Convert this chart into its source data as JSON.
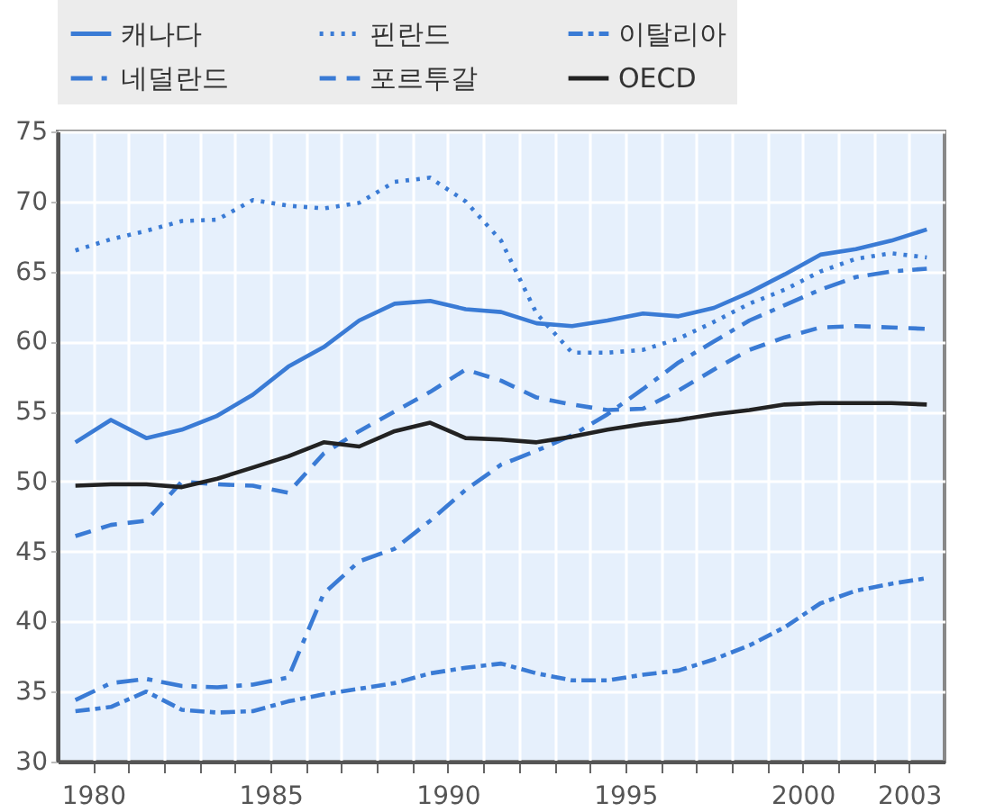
{
  "chart_data": {
    "type": "line",
    "x": [
      1979.5,
      1980.5,
      1981.5,
      1982.5,
      1983.5,
      1984.5,
      1985.5,
      1986.5,
      1987.5,
      1988.5,
      1989.5,
      1990.5,
      1991.5,
      1992.5,
      1993.5,
      1994.5,
      1995.5,
      1996.5,
      1997.5,
      1998.5,
      1999.5,
      2000.5,
      2001.5,
      2002.5,
      2003.5
    ],
    "series": [
      {
        "name": "캐나다",
        "color": "#3a7bd5",
        "line_style": "solid",
        "values": [
          52.8,
          54.4,
          53.1,
          53.7,
          54.7,
          56.2,
          58.2,
          59.6,
          61.5,
          62.7,
          62.9,
          62.3,
          62.1,
          61.3,
          61.1,
          61.5,
          62.0,
          61.8,
          62.4,
          63.5,
          64.8,
          66.2,
          66.6,
          67.2,
          68.0
        ]
      },
      {
        "name": "핀란드",
        "color": "#3a7bd5",
        "line_style": "dotted",
        "values": [
          66.5,
          67.3,
          67.9,
          68.6,
          68.7,
          70.1,
          69.7,
          69.5,
          69.9,
          71.4,
          71.7,
          70.0,
          67.2,
          62.0,
          59.2,
          59.2,
          59.4,
          60.2,
          61.4,
          62.7,
          63.7,
          65.0,
          65.9,
          66.3,
          66.0
        ]
      },
      {
        "name": "이탈리아",
        "color": "#3a7bd5",
        "line_style": "dashed",
        "values": [
          33.6,
          33.9,
          35.0,
          33.7,
          33.5,
          33.6,
          34.3,
          34.8,
          35.2,
          35.6,
          36.3,
          36.7,
          37.0,
          36.3,
          35.8,
          35.8,
          36.2,
          36.5,
          37.3,
          38.3,
          39.6,
          41.3,
          42.2,
          42.7,
          43.1
        ]
      },
      {
        "name": "네덜란드",
        "color": "#3a7bd5",
        "line_style": "dashed",
        "values": [
          34.4,
          35.6,
          35.9,
          35.4,
          35.3,
          35.5,
          36.0,
          42.0,
          44.3,
          45.2,
          47.2,
          49.4,
          51.2,
          52.2,
          53.3,
          54.8,
          56.6,
          58.5,
          60.0,
          61.5,
          62.6,
          63.7,
          64.6,
          65.0,
          65.2
        ]
      },
      {
        "name": "포르투갈",
        "color": "#3a7bd5",
        "line_style": "dashed",
        "values": [
          46.1,
          46.9,
          47.2,
          50.0,
          49.8,
          49.7,
          49.2,
          52.0,
          53.6,
          55.0,
          56.4,
          58.0,
          57.2,
          56.0,
          55.5,
          55.1,
          55.2,
          56.5,
          58.0,
          59.4,
          60.3,
          61.0,
          61.1,
          61.0,
          60.9
        ]
      },
      {
        "name": "OECD",
        "color": "#222222",
        "line_style": "solid",
        "values": [
          49.7,
          49.8,
          49.8,
          49.6,
          50.2,
          51.0,
          51.8,
          52.8,
          52.5,
          53.6,
          54.2,
          53.1,
          53.0,
          52.8,
          53.2,
          53.7,
          54.1,
          54.4,
          54.8,
          55.1,
          55.5,
          55.6,
          55.6,
          55.6,
          55.5
        ]
      }
    ],
    "xlim": [
      1979,
      2004
    ],
    "xticks": [
      1980,
      {
        "value": 1981,
        "label": null
      },
      {
        "value": 1982,
        "label": null
      },
      {
        "value": 1983,
        "label": null
      },
      {
        "value": 1984,
        "label": null
      },
      1985,
      {
        "value": 1986,
        "label": null
      },
      {
        "value": 1987,
        "label": null
      },
      {
        "value": 1988,
        "label": null
      },
      {
        "value": 1989,
        "label": null
      },
      1990,
      {
        "value": 1991,
        "label": null
      },
      {
        "value": 1992,
        "label": null
      },
      {
        "value": 1993,
        "label": null
      },
      {
        "value": 1994,
        "label": null
      },
      1995,
      {
        "value": 1996,
        "label": null
      },
      {
        "value": 1997,
        "label": null
      },
      {
        "value": 1998,
        "label": null
      },
      {
        "value": 1999,
        "label": null
      },
      2000,
      {
        "value": 2001,
        "label": null
      },
      {
        "value": 2002,
        "label": null
      },
      2003
    ],
    "ylim": [
      30,
      75
    ],
    "yticks": [
      30,
      35,
      40,
      45,
      50,
      55,
      60,
      65,
      70,
      75
    ],
    "grid": true,
    "legend": "top",
    "marker": "none"
  }
}
